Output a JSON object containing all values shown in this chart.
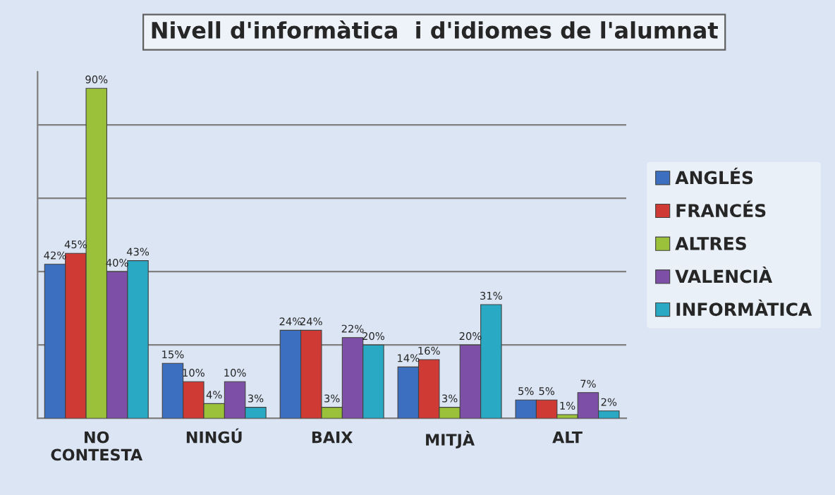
{
  "chart_data": {
    "type": "bar",
    "title": "Nivell d'informàtica  i d'idiomes de l'alumnat",
    "categories": [
      "NO\nCONTESTA",
      "NINGÚ",
      "BAIX",
      "MITJÀ",
      "ALT"
    ],
    "series": [
      {
        "name": "ANGLÉS",
        "color": "#3c6fc0",
        "values": [
          42,
          15,
          24,
          14,
          5
        ],
        "value_labels": [
          "42%",
          "15%",
          "24%",
          "14%",
          "5%"
        ]
      },
      {
        "name": "FRANCÉS",
        "color": "#d03a35",
        "values": [
          45,
          10,
          24,
          16,
          5
        ],
        "value_labels": [
          "45%",
          "10%",
          "24%",
          "16%",
          "5%"
        ]
      },
      {
        "name": "ALTRES",
        "color": "#9bc13a",
        "values": [
          90,
          4,
          3,
          3,
          1
        ],
        "value_labels": [
          "90%",
          "4%",
          "3%",
          "3%",
          "1%"
        ]
      },
      {
        "name": "VALENCIÀ",
        "color": "#7d4fa6",
        "values": [
          40,
          10,
          22,
          20,
          7
        ],
        "value_labels": [
          "40%",
          "10%",
          "22%",
          "20%",
          "7%"
        ]
      },
      {
        "name": "INFORMÀTICA",
        "color": "#2aa9c4",
        "values": [
          43,
          3,
          20,
          31,
          2
        ],
        "value_labels": [
          "43%",
          "3%",
          "20%",
          "31%",
          "2%"
        ]
      }
    ],
    "tick_labels": "x",
    "grid": "y",
    "legend": "right"
  }
}
